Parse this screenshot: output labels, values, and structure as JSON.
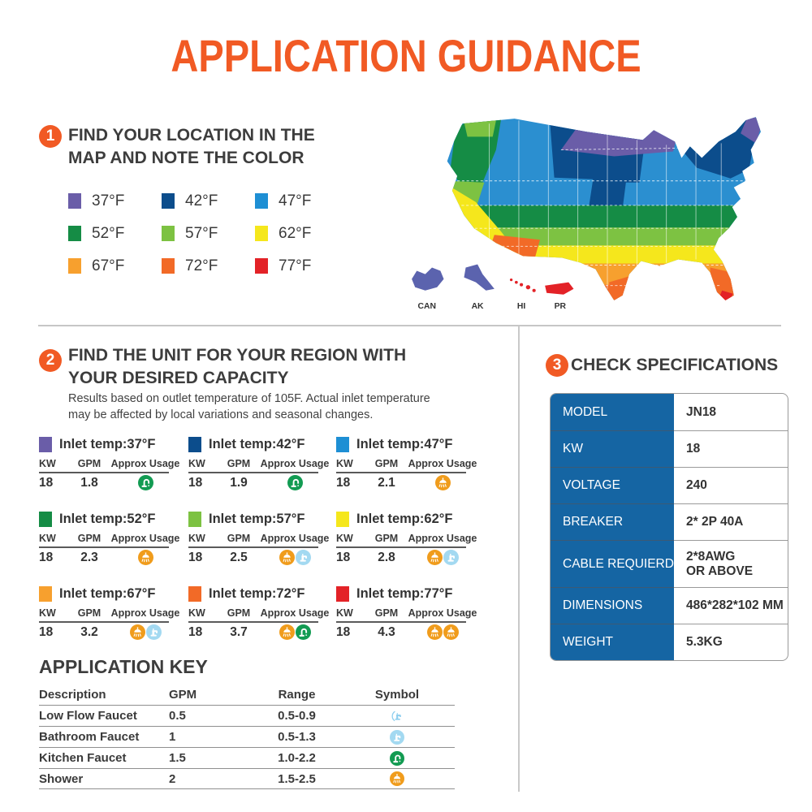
{
  "title": "APPLICATION GUIDANCE",
  "brand_colors": {
    "accent_orange": "#F15A24",
    "table_blue": "#1565A3",
    "heading_gray": "#3d3d3d"
  },
  "section1": {
    "number": "1",
    "heading_line1": "FIND YOUR LOCATION IN THE",
    "heading_line2": "MAP AND NOTE THE COLOR",
    "legend": [
      {
        "label": "37°F",
        "color": "#6A5DA8"
      },
      {
        "label": "42°F",
        "color": "#0C4D8C"
      },
      {
        "label": "47°F",
        "color": "#1E8FD4"
      },
      {
        "label": "52°F",
        "color": "#158C45"
      },
      {
        "label": "57°F",
        "color": "#7DC242"
      },
      {
        "label": "62°F",
        "color": "#F5E71C"
      },
      {
        "label": "67°F",
        "color": "#F7A02E"
      },
      {
        "label": "72°F",
        "color": "#F26A27"
      },
      {
        "label": "77°F",
        "color": "#E32227"
      }
    ],
    "map_labels": [
      "CAN",
      "AK",
      "HI",
      "PR"
    ]
  },
  "section2": {
    "number": "2",
    "heading_line1": "FIND THE UNIT FOR YOUR REGION WITH",
    "heading_line2": "YOUR DESIRED CAPACITY",
    "subtitle_line1": "Results based on outlet temperature of 105F. Actual inlet temperature",
    "subtitle_line2": "may be affected by local variations and seasonal changes.",
    "table_headers": {
      "kw": "KW",
      "gpm": "GPM",
      "usage": "Approx Usage"
    },
    "units": [
      {
        "label": "Inlet temp:37°F",
        "color": "#6A5DA8",
        "kw": "18",
        "gpm": "1.8",
        "icons": [
          "kitchen-faucet"
        ]
      },
      {
        "label": "Inlet temp:42°F",
        "color": "#0C4D8C",
        "kw": "18",
        "gpm": "1.9",
        "icons": [
          "kitchen-faucet"
        ]
      },
      {
        "label": "Inlet temp:47°F",
        "color": "#1E8FD4",
        "kw": "18",
        "gpm": "2.1",
        "icons": [
          "shower"
        ]
      },
      {
        "label": "Inlet temp:52°F",
        "color": "#158C45",
        "kw": "18",
        "gpm": "2.3",
        "icons": [
          "shower"
        ]
      },
      {
        "label": "Inlet temp:57°F",
        "color": "#7DC242",
        "kw": "18",
        "gpm": "2.5",
        "icons": [
          "shower",
          "bathroom-faucet"
        ]
      },
      {
        "label": "Inlet temp:62°F",
        "color": "#F5E71C",
        "kw": "18",
        "gpm": "2.8",
        "icons": [
          "shower",
          "bathroom-faucet"
        ]
      },
      {
        "label": "Inlet temp:67°F",
        "color": "#F7A02E",
        "kw": "18",
        "gpm": "3.2",
        "icons": [
          "shower",
          "bathroom-faucet"
        ]
      },
      {
        "label": "Inlet temp:72°F",
        "color": "#F26A27",
        "kw": "18",
        "gpm": "3.7",
        "icons": [
          "shower",
          "kitchen-faucet"
        ]
      },
      {
        "label": "Inlet temp:77°F",
        "color": "#E32227",
        "kw": "18",
        "gpm": "4.3",
        "icons": [
          "shower",
          "shower"
        ]
      }
    ]
  },
  "application_key": {
    "heading": "APPLICATION KEY",
    "headers": {
      "description": "Description",
      "gpm": "GPM",
      "range": "Range",
      "symbol": "Symbol"
    },
    "rows": [
      {
        "description": "Low Flow Faucet",
        "gpm": "0.5",
        "range": "0.5-0.9",
        "symbol": [
          "low-flow-faucet"
        ]
      },
      {
        "description": "Bathroom Faucet",
        "gpm": "1",
        "range": "0.5-1.3",
        "symbol": [
          "bathroom-faucet"
        ]
      },
      {
        "description": "Kitchen Faucet",
        "gpm": "1.5",
        "range": "1.0-2.2",
        "symbol": [
          "kitchen-faucet"
        ]
      },
      {
        "description": "Shower",
        "gpm": "2",
        "range": "1.5-2.5",
        "symbol": [
          "shower"
        ]
      }
    ]
  },
  "section3": {
    "number": "3",
    "heading": "CHECK SPECIFICATIONS",
    "specs": [
      {
        "label": "MODEL",
        "value": "JN18"
      },
      {
        "label": "KW",
        "value": "18"
      },
      {
        "label": "VOLTAGE",
        "value": "240"
      },
      {
        "label": "BREAKER",
        "value": "2* 2P 40A"
      },
      {
        "label": "CABLE REQUIERD",
        "value": "2*8AWG\nOR ABOVE"
      },
      {
        "label": "DIMENSIONS",
        "value": "486*282*102 MM"
      },
      {
        "label": "WEIGHT",
        "value": "5.3KG"
      }
    ]
  }
}
